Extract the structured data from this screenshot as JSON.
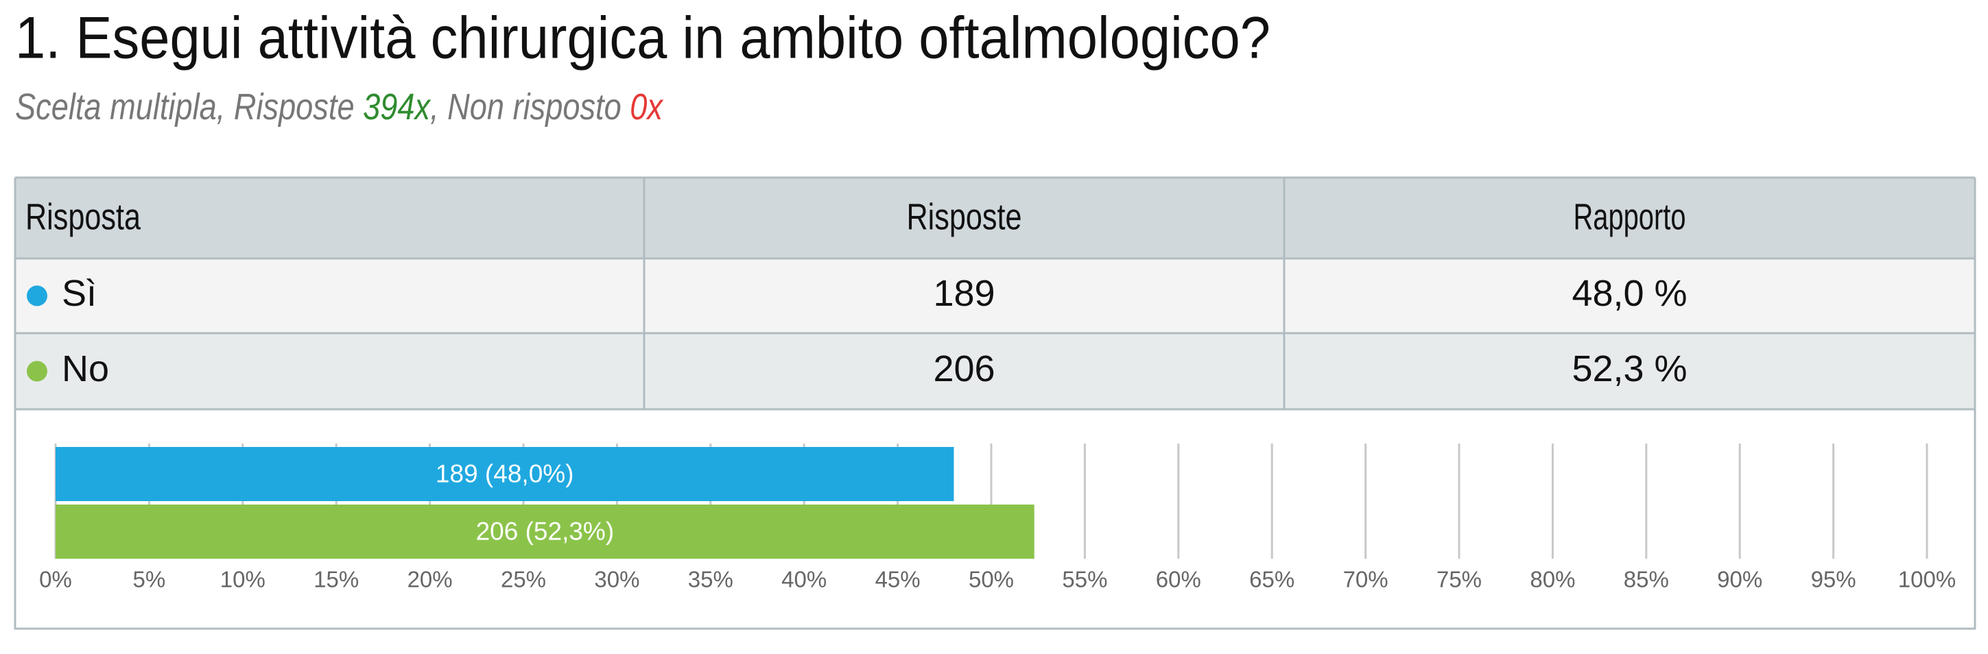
{
  "header": {
    "title": "1. Esegui attività chirurgica in ambito oftalmologico?",
    "subtitle": [
      "Scelta multipla, Risposte ",
      "394x",
      ", Non risposto ",
      "0x"
    ],
    "subtitle_colors": [
      "#777777",
      "#2e8b2e",
      "#777777",
      "#e53935"
    ]
  },
  "table": {
    "columns": [
      "Risposta",
      "Risposte",
      "Rapporto"
    ],
    "rows": [
      [
        "Sì",
        "189",
        "48,0 %"
      ],
      [
        "No",
        "206",
        "52,3 %"
      ]
    ]
  },
  "chart_data": {
    "type": "bar",
    "orientation": "horizontal",
    "categories": [
      null,
      null
    ],
    "values": [
      48.0,
      52.3
    ],
    "value_labels": [
      "189 (48,0%)",
      "206 (52,3%)"
    ],
    "colors": [
      "#1fa8e0",
      "#8bc34a"
    ],
    "xlim": [
      0,
      100
    ],
    "xticks": [
      {
        "value": 0,
        "label": "0%"
      },
      {
        "value": 5,
        "label": "5%"
      },
      {
        "value": 10,
        "label": "10%"
      },
      {
        "value": 15,
        "label": "15%"
      },
      {
        "value": 20,
        "label": "20%"
      },
      {
        "value": 25,
        "label": "25%"
      },
      {
        "value": 30,
        "label": "30%"
      },
      {
        "value": 35,
        "label": "35%"
      },
      {
        "value": 40,
        "label": "40%"
      },
      {
        "value": 45,
        "label": "45%"
      },
      {
        "value": 50,
        "label": "50%"
      },
      {
        "value": 55,
        "label": "55%"
      },
      {
        "value": 60,
        "label": "60%"
      },
      {
        "value": 65,
        "label": "65%"
      },
      {
        "value": 70,
        "label": "70%"
      },
      {
        "value": 75,
        "label": "75%"
      },
      {
        "value": 80,
        "label": "80%"
      },
      {
        "value": 85,
        "label": "85%"
      },
      {
        "value": 90,
        "label": "90%"
      },
      {
        "value": 95,
        "label": "95%"
      },
      {
        "value": 100,
        "label": "100%"
      }
    ],
    "grid": true
  }
}
